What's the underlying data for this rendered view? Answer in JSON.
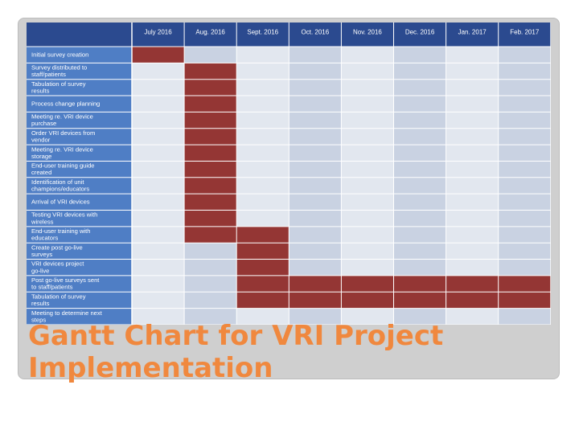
{
  "slide": {
    "title": "Gantt Chart for VRI Project Implementation"
  },
  "colors": {
    "header_bg": "#2b4a8f",
    "task_bg": "#4f7ec5",
    "cell_light": "#e2e7ef",
    "cell_dark": "#c9d2e2",
    "bar": "#943634",
    "grid": "#ffffff",
    "title": "#f0883e"
  },
  "chart_data": {
    "type": "table",
    "months": [
      "July 2016",
      "Aug. 2016",
      "Sept. 2016",
      "Oct. 2016",
      "Nov. 2016",
      "Dec. 2016",
      "Jan. 2017",
      "Feb. 2017"
    ],
    "tasks": [
      {
        "name": "Initial survey creation",
        "start": "July 2016",
        "end": "July 2016"
      },
      {
        "name": "Survey distributed to staff/patients",
        "start": "Aug. 2016",
        "end": "Aug. 2016"
      },
      {
        "name": "Tabulation of survey results",
        "start": "Aug. 2016",
        "end": "Aug. 2016"
      },
      {
        "name": "Process change planning",
        "start": "Aug. 2016",
        "end": "Aug. 2016"
      },
      {
        "name": "Meeting re. VRI device purchase",
        "start": "Aug. 2016",
        "end": "Aug. 2016"
      },
      {
        "name": "Order VRI devices from vendor",
        "start": "Aug. 2016",
        "end": "Aug. 2016"
      },
      {
        "name": "Meeting re. VRI device storage",
        "start": "Aug. 2016",
        "end": "Aug. 2016"
      },
      {
        "name": "End-user training guide created",
        "start": "Aug. 2016",
        "end": "Aug. 2016"
      },
      {
        "name": "Identification of unit champions/educators",
        "start": "Aug. 2016",
        "end": "Aug. 2016"
      },
      {
        "name": "Arrival of VRI devices",
        "start": "Aug. 2016",
        "end": "Aug. 2016"
      },
      {
        "name": "Testing VRI devices with wireless",
        "start": "Aug. 2016",
        "end": "Aug. 2016"
      },
      {
        "name": "End-user training with educators",
        "start": "Aug. 2016",
        "end": "Sept. 2016"
      },
      {
        "name": "Create post go-live surveys",
        "start": "Sept. 2016",
        "end": "Sept. 2016"
      },
      {
        "name": "VRI devices project go-live",
        "start": "Sept. 2016",
        "end": "Sept. 2016"
      },
      {
        "name": "Post go-live surveys sent to staff/patients",
        "start": "Sept. 2016",
        "end": "Feb. 2017"
      },
      {
        "name": "Tabulation of survey results",
        "start": "Sept. 2016",
        "end": "Feb. 2017"
      },
      {
        "name": "Meeting to determine next steps",
        "start": "",
        "end": ""
      }
    ]
  }
}
